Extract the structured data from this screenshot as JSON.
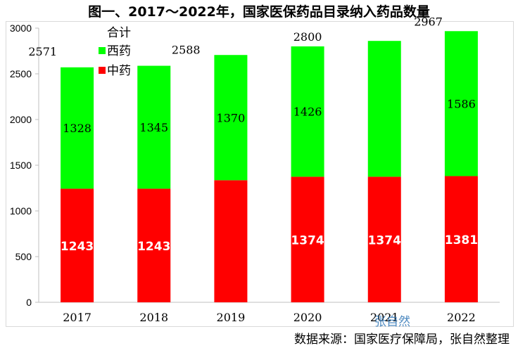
{
  "title": "图一、2017～2022年，国家医保药品目录纳入药品数量",
  "source_note": "数据来源：国家医疗保障局，张自然整理",
  "watermark": "张自然",
  "colors": {
    "tcm": "#ff0000",
    "western": "#00ff00",
    "axis": "#bfbfbf",
    "text": "#000000"
  },
  "chart_data": {
    "type": "bar",
    "stacked": true,
    "categories": [
      "2017",
      "2018",
      "2019",
      "2020",
      "2021",
      "2022"
    ],
    "series": [
      {
        "name": "中药",
        "values": [
          1243,
          1243,
          1336,
          1374,
          1374,
          1381
        ],
        "color": "#ff0000",
        "labels": [
          "1243",
          "1243",
          "",
          "1374",
          "1374",
          "1381"
        ]
      },
      {
        "name": "西药",
        "values": [
          1328,
          1345,
          1370,
          1426,
          1486,
          1586
        ],
        "color": "#00ff00",
        "labels": [
          "1328",
          "1345",
          "1370",
          "1426",
          "",
          "1586"
        ]
      }
    ],
    "totals_label": "合计",
    "totals": [
      "2571",
      "2588",
      "",
      "2800",
      "",
      "2967"
    ],
    "ylim": [
      0,
      3000
    ],
    "yticks": [
      0,
      500,
      1000,
      1500,
      2000,
      2500,
      3000
    ],
    "legend_position": "top-left",
    "xlabel": "",
    "ylabel": ""
  }
}
